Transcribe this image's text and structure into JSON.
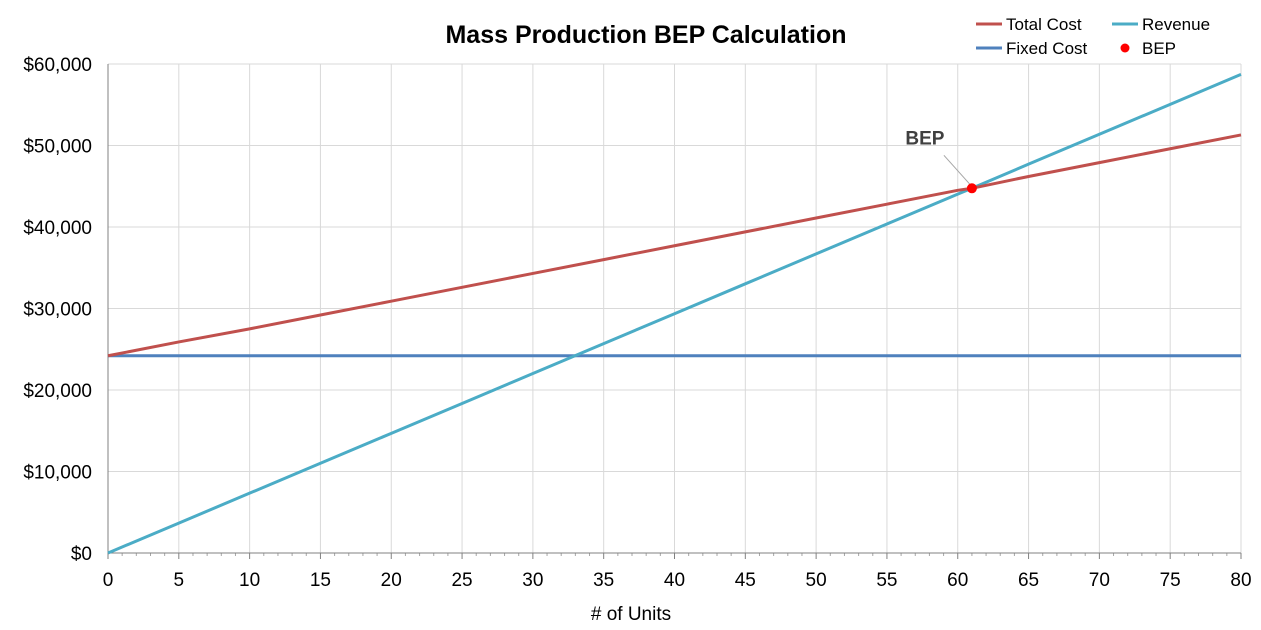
{
  "chart_data": {
    "type": "line",
    "title": "Mass Production BEP Calculation",
    "xlabel": "# of Units",
    "ylabel": "",
    "xlim": [
      0,
      80
    ],
    "ylim": [
      0,
      60000
    ],
    "x_ticks": [
      0,
      5,
      10,
      15,
      20,
      25,
      30,
      35,
      40,
      45,
      50,
      55,
      60,
      65,
      70,
      75,
      80
    ],
    "x_tick_labels": [
      "0",
      "5",
      "10",
      "15",
      "20",
      "25",
      "30",
      "35",
      "40",
      "45",
      "50",
      "55",
      "60",
      "65",
      "70",
      "75",
      "80"
    ],
    "y_ticks": [
      0,
      10000,
      20000,
      30000,
      40000,
      50000,
      60000
    ],
    "y_tick_labels": [
      "$0",
      "$10,000",
      "$20,000",
      "$30,000",
      "$40,000",
      "$50,000",
      "$60,000"
    ],
    "grid": true,
    "legend_position": "top-right",
    "x": [
      0,
      5,
      10,
      15,
      20,
      25,
      30,
      35,
      40,
      45,
      50,
      55,
      60,
      61,
      65,
      70,
      75,
      80
    ],
    "series": [
      {
        "name": "Total Cost",
        "color": "#c0504d",
        "values": [
          24200,
          25900,
          27500,
          29200,
          30900,
          32600,
          34300,
          36000,
          37700,
          39400,
          41100,
          42800,
          44500,
          44750,
          46200,
          47900,
          49600,
          51300
        ]
      },
      {
        "name": "Fixed Cost",
        "color": "#4f81bd",
        "values": [
          24200,
          24200,
          24200,
          24200,
          24200,
          24200,
          24200,
          24200,
          24200,
          24200,
          24200,
          24200,
          24200,
          24200,
          24200,
          24200,
          24200,
          24200
        ]
      },
      {
        "name": "Revenue",
        "color": "#4bacc6",
        "values": [
          0,
          3670,
          7340,
          11010,
          14680,
          18350,
          22020,
          25690,
          29360,
          33030,
          36700,
          40370,
          44040,
          44750,
          47710,
          51380,
          55050,
          58720
        ]
      }
    ],
    "bep": {
      "name": "BEP",
      "color": "#ff0000",
      "x": 61,
      "y": 44750,
      "annotation": "BEP"
    }
  }
}
